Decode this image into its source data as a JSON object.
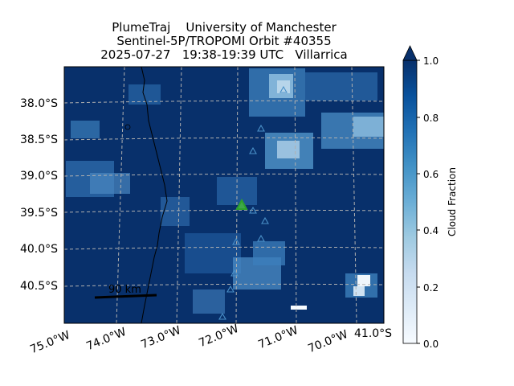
{
  "title": {
    "line1": "PlumeTraj    University of Manchester",
    "line2": "Sentinel-5P/TROPOMI Orbit #40355",
    "line3": "2025-07-27   19:38-19:39 UTC   Villarrica"
  },
  "map": {
    "lat_labels": [
      "38.0°S",
      "38.5°S",
      "39.0°S",
      "39.5°S",
      "40.0°S",
      "40.5°S"
    ],
    "lon_labels": [
      "75.0°W",
      "74.0°W",
      "73.0°W",
      "72.0°W",
      "71.0°W",
      "70.0°W"
    ],
    "extra_label": "41.0°S",
    "scale_bar_label": "90 km",
    "background_color": "#08306b",
    "volcano_color": "#2ca02c",
    "triangle_color": "#4a90c8",
    "coastline_color": "#000000",
    "gridline_color": "#b0b0b0"
  },
  "colorbar": {
    "label": "Cloud Fraction",
    "ticks": [
      "0.0",
      "0.2",
      "0.4",
      "0.6",
      "0.8",
      "1.0"
    ],
    "colormap": "Blues",
    "extend": "max",
    "range": [
      0.0,
      1.0
    ]
  }
}
